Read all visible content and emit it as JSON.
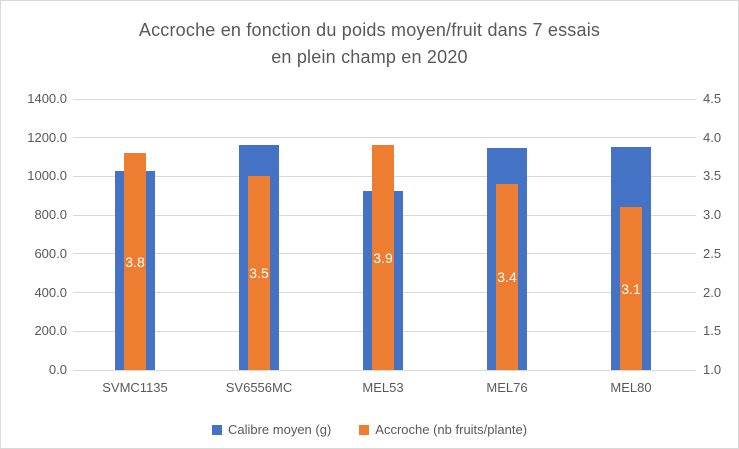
{
  "title": {
    "line1": "Accroche en fonction du poids moyen/fruit dans 7 essais",
    "line2": "en plein champ en 2020"
  },
  "chart_data": {
    "type": "bar",
    "title": "Accroche en fonction du poids moyen/fruit dans 7 essais en plein champ en 2020",
    "categories": [
      "SVMC1135",
      "SV6556MC",
      "MEL53",
      "MEL76",
      "MEL80"
    ],
    "series": [
      {
        "name": "Calibre moyen (g)",
        "axis": "left",
        "color": "#4472C4",
        "values": [
          1030,
          1160,
          925,
          1145,
          1150
        ]
      },
      {
        "name": "Accroche (nb fruits/plante)",
        "axis": "right",
        "color": "#ED7D31",
        "values": [
          3.8,
          3.5,
          3.9,
          3.4,
          3.1
        ],
        "data_labels": [
          "3.8",
          "3.5",
          "3.9",
          "3.4",
          "3.1"
        ],
        "data_label_color": "#FFFFFF"
      }
    ],
    "left_axis": {
      "min": 0,
      "max": 1400,
      "step": 200,
      "tick_labels": [
        "0.0",
        "200.0",
        "400.0",
        "600.0",
        "800.0",
        "1000.0",
        "1200.0",
        "1400.0"
      ]
    },
    "right_axis": {
      "min": 1.0,
      "max": 4.5,
      "step": 0.5,
      "tick_labels": [
        "1.0",
        "1.5",
        "2.0",
        "2.5",
        "3.0",
        "3.5",
        "4.0",
        "4.5"
      ]
    },
    "grid": true,
    "legend_position": "bottom",
    "bar_style": "overlapped-dual-axis"
  },
  "colors": {
    "series_blue": "#4472C4",
    "series_orange": "#ED7D31",
    "gridline": "#D9D9D9",
    "axis_text": "#595959",
    "title_text": "#595959",
    "data_label_text": "#FFFFFF",
    "background": "#FFFFFF",
    "border": "#D9D9D9"
  }
}
